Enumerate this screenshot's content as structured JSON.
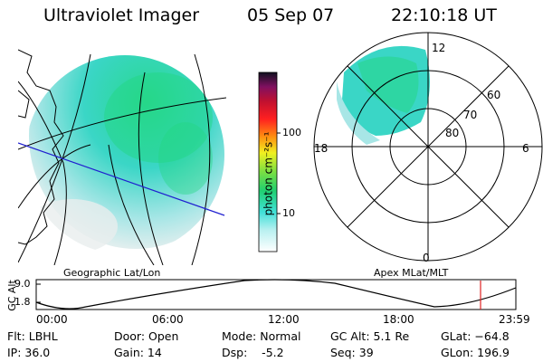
{
  "header": {
    "title": "Ultraviolet Imager",
    "date": "05 Sep 07",
    "time": "22:10:18 UT"
  },
  "left_panel": {
    "caption": "Geographic Lat/Lon"
  },
  "colorbar": {
    "unit_label": "photon cm⁻²s⁻¹",
    "ticks": [
      "100",
      "10"
    ],
    "scale": "log"
  },
  "right_panel": {
    "caption": "Apex MLat/MLT",
    "mlt_labels": {
      "top": "12",
      "left": "18",
      "right": "6",
      "bottom": "0"
    },
    "lat_labels": [
      "60",
      "70",
      "80"
    ]
  },
  "altitude_strip": {
    "axis_label": "GC Alt",
    "y_ticks": [
      "9.0",
      "1.8"
    ],
    "x_ticks": [
      "00:00",
      "06:00",
      "12:00",
      "18:00",
      "23:59"
    ],
    "current_time_marker_color": "#e02020"
  },
  "info": {
    "flt": "Flt: LBHL",
    "ip": "IP: 36.0",
    "door": "Door: Open",
    "gain": "Gain: 14",
    "mode": "Mode: Normal",
    "dsp": "Dsp:    -5.2",
    "gc_alt": "GC Alt: 5.1 Re",
    "seq": "Seq: 39",
    "glat": "GLat: −64.8",
    "glon": "GLon: 196.9"
  },
  "colors": {
    "aurora_bright": "#22d680",
    "aurora_mid": "#36d8d0",
    "aurora_faint": "#bfe8e8",
    "map_line": "#000000",
    "track_line": "#2020d0"
  }
}
